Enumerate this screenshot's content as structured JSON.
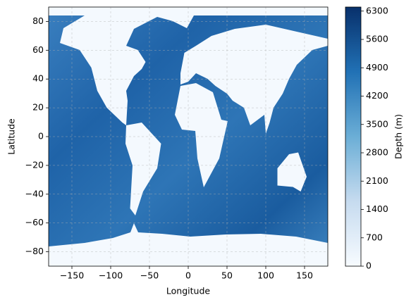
{
  "chart_data": {
    "type": "map",
    "xlabel": "Longitude",
    "ylabel": "Latitude",
    "xlim": [
      -180,
      180
    ],
    "ylim": [
      -90,
      90
    ],
    "xticks": [
      {
        "value": -150,
        "label": "−150"
      },
      {
        "value": -100,
        "label": "−100"
      },
      {
        "value": -50,
        "label": "−50"
      },
      0,
      50,
      100,
      150
    ],
    "yticks": [
      {
        "value": -80,
        "label": "−80"
      },
      {
        "value": -60,
        "label": "−60"
      },
      {
        "value": -40,
        "label": "−40"
      },
      {
        "value": -20,
        "label": "−20"
      },
      0,
      20,
      40,
      60,
      80
    ],
    "grid": true,
    "colorbar": {
      "label": "Depth (m)",
      "lim": [
        0,
        6400
      ],
      "ticks": [
        0,
        700,
        1400,
        2100,
        2800,
        3500,
        4200,
        4900,
        5600,
        6300
      ],
      "colormap": [
        "#f7fbff",
        "#c6dbef",
        "#6baed6",
        "#2171b5",
        "#08306b"
      ]
    }
  }
}
